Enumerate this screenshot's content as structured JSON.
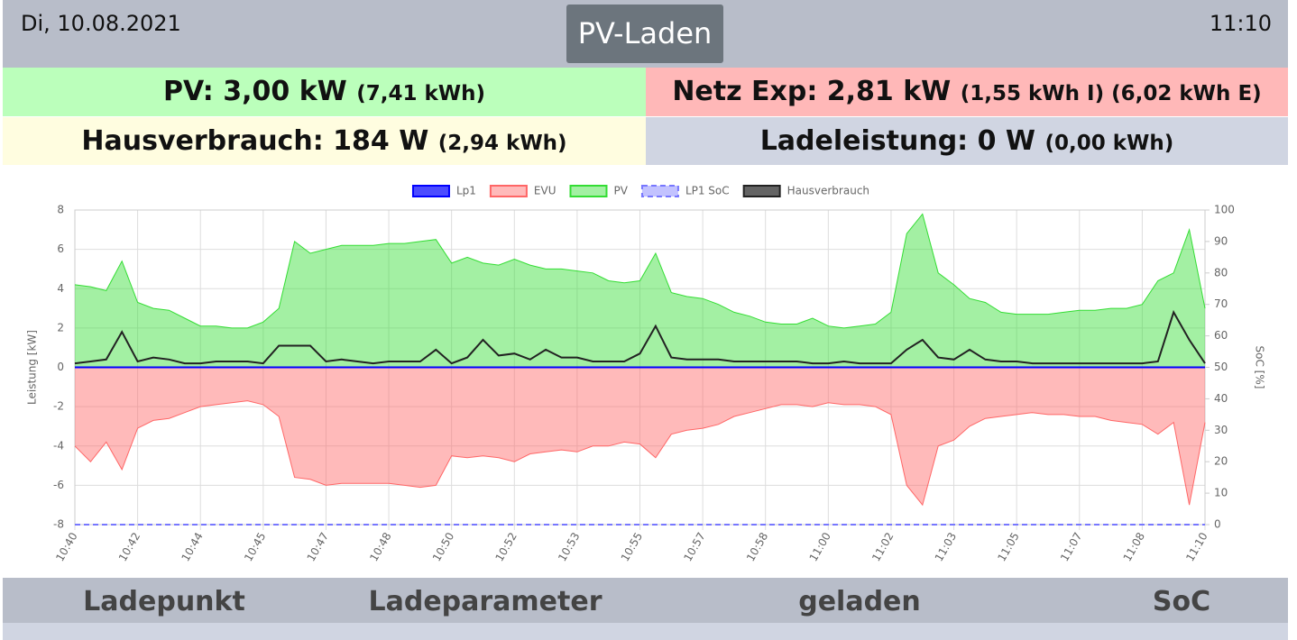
{
  "header": {
    "date": "Di, 10.08.2021",
    "title": "PV-Laden",
    "time": "11:10"
  },
  "tiles": [
    {
      "main": "PV: 3,00 kW",
      "detail": "(7,41 kWh)"
    },
    {
      "main": "Netz Exp: 2,81 kW",
      "detail": "(1,55 kWh I) (6,02 kWh E)"
    },
    {
      "main": "Hausverbrauch: 184 W",
      "detail": "(2,94 kWh)"
    },
    {
      "main": "Ladeleistung: 0 W",
      "detail": "(0,00 kWh)"
    }
  ],
  "chart_data": {
    "type": "line",
    "y_label": "Leistung [kW]",
    "y2_label": "SoC [%]",
    "legend": "top",
    "grid": true,
    "ylim": [
      -8,
      8
    ],
    "yticks": [
      -8,
      -6,
      -4,
      -2,
      0,
      2,
      4,
      6,
      8
    ],
    "y2lim": [
      0,
      100
    ],
    "y2ticks": [
      0,
      10,
      20,
      30,
      40,
      50,
      60,
      70,
      80,
      90,
      100
    ],
    "categories": [
      "10:40",
      null,
      null,
      null,
      "10:42",
      null,
      null,
      null,
      "10:44",
      null,
      null,
      null,
      "10:45",
      null,
      null,
      null,
      "10:47",
      null,
      null,
      null,
      "10:48",
      null,
      null,
      null,
      "10:50",
      null,
      null,
      null,
      "10:52",
      null,
      null,
      null,
      "10:53",
      null,
      null,
      null,
      "10:55",
      null,
      null,
      null,
      "10:57",
      null,
      null,
      null,
      "10:58",
      null,
      null,
      null,
      "11:00",
      null,
      null,
      null,
      "11:02",
      null,
      null,
      null,
      "11:03",
      null,
      null,
      null,
      "11:05",
      null,
      null,
      null,
      "11:07",
      null,
      null,
      null,
      "11:08",
      null,
      null,
      null,
      "11:10"
    ],
    "series": [
      {
        "name": "Lp1",
        "color": "#0000ff",
        "fill": false,
        "dash": false,
        "values": [
          0,
          0,
          0,
          0,
          0,
          0,
          0,
          0,
          0,
          0,
          0,
          0,
          0,
          0,
          0,
          0,
          0,
          0,
          0,
          0,
          0,
          0,
          0,
          0,
          0,
          0,
          0,
          0,
          0,
          0,
          0,
          0,
          0,
          0,
          0,
          0,
          0,
          0,
          0,
          0,
          0,
          0,
          0,
          0,
          0,
          0,
          0,
          0,
          0,
          0,
          0,
          0,
          0,
          0,
          0,
          0,
          0,
          0,
          0,
          0,
          0,
          0,
          0,
          0,
          0,
          0,
          0,
          0,
          0,
          0,
          0,
          0,
          0
        ]
      },
      {
        "name": "EVU",
        "color": "#ff6666",
        "fill": true,
        "dash": false,
        "values": [
          -4.0,
          -4.8,
          -3.8,
          -5.2,
          -3.1,
          -2.7,
          -2.6,
          -2.3,
          -2.0,
          -1.9,
          -1.8,
          -1.7,
          -1.9,
          -2.5,
          -5.6,
          -5.7,
          -6.0,
          -5.9,
          -5.9,
          -5.9,
          -5.9,
          -6.0,
          -6.1,
          -6.0,
          -4.5,
          -4.6,
          -4.5,
          -4.6,
          -4.8,
          -4.4,
          -4.3,
          -4.2,
          -4.3,
          -4.0,
          -4.0,
          -3.8,
          -3.9,
          -4.6,
          -3.4,
          -3.2,
          -3.1,
          -2.9,
          -2.5,
          -2.3,
          -2.1,
          -1.9,
          -1.9,
          -2.0,
          -1.8,
          -1.9,
          -1.9,
          -2.0,
          -2.4,
          -6.0,
          -7.0,
          -4.0,
          -3.7,
          -3.0,
          -2.6,
          -2.5,
          -2.4,
          -2.3,
          -2.4,
          -2.4,
          -2.5,
          -2.5,
          -2.7,
          -2.8,
          -2.9,
          -3.4,
          -2.8,
          -7.0,
          -2.8
        ]
      },
      {
        "name": "PV",
        "color": "#33dd33",
        "fill": true,
        "dash": false,
        "values": [
          4.2,
          4.1,
          3.9,
          5.4,
          3.3,
          3.0,
          2.9,
          2.5,
          2.1,
          2.1,
          2.0,
          2.0,
          2.3,
          3.0,
          6.4,
          5.8,
          6.0,
          6.2,
          6.2,
          6.2,
          6.3,
          6.3,
          6.4,
          6.5,
          5.3,
          5.6,
          5.3,
          5.2,
          5.5,
          5.2,
          5.0,
          5.0,
          4.9,
          4.8,
          4.4,
          4.3,
          4.4,
          5.8,
          3.8,
          3.6,
          3.5,
          3.2,
          2.8,
          2.6,
          2.3,
          2.2,
          2.2,
          2.5,
          2.1,
          2.0,
          2.1,
          2.2,
          2.8,
          6.8,
          7.8,
          4.8,
          4.2,
          3.5,
          3.3,
          2.8,
          2.7,
          2.7,
          2.7,
          2.8,
          2.9,
          2.9,
          3.0,
          3.0,
          3.2,
          4.4,
          4.8,
          7.0,
          3.0
        ]
      },
      {
        "name": "LP1 SoC",
        "color": "#7777ff",
        "fill": false,
        "dash": true,
        "axis": "y2",
        "values": [
          0,
          0,
          0,
          0,
          0,
          0,
          0,
          0,
          0,
          0,
          0,
          0,
          0,
          0,
          0,
          0,
          0,
          0,
          0,
          0,
          0,
          0,
          0,
          0,
          0,
          0,
          0,
          0,
          0,
          0,
          0,
          0,
          0,
          0,
          0,
          0,
          0,
          0,
          0,
          0,
          0,
          0,
          0,
          0,
          0,
          0,
          0,
          0,
          0,
          0,
          0,
          0,
          0,
          0,
          0,
          0,
          0,
          0,
          0,
          0,
          0,
          0,
          0,
          0,
          0,
          0,
          0,
          0,
          0,
          0,
          0,
          0,
          0
        ]
      },
      {
        "name": "Hausverbrauch",
        "color": "#222222",
        "fill": false,
        "dash": false,
        "values": [
          0.2,
          0.3,
          0.4,
          1.8,
          0.3,
          0.5,
          0.4,
          0.2,
          0.2,
          0.3,
          0.3,
          0.3,
          0.2,
          1.1,
          1.1,
          1.1,
          0.3,
          0.4,
          0.3,
          0.2,
          0.3,
          0.3,
          0.3,
          0.9,
          0.2,
          0.5,
          1.4,
          0.6,
          0.7,
          0.4,
          0.9,
          0.5,
          0.5,
          0.3,
          0.3,
          0.3,
          0.7,
          2.1,
          0.5,
          0.4,
          0.4,
          0.4,
          0.3,
          0.3,
          0.3,
          0.3,
          0.3,
          0.2,
          0.2,
          0.3,
          0.2,
          0.2,
          0.2,
          0.9,
          1.4,
          0.5,
          0.4,
          0.9,
          0.4,
          0.3,
          0.3,
          0.2,
          0.2,
          0.2,
          0.2,
          0.2,
          0.2,
          0.2,
          0.2,
          0.3,
          2.8,
          1.4,
          0.2
        ]
      }
    ]
  },
  "table": {
    "headers": [
      "Ladepunkt",
      "Ladeparameter",
      "geladen",
      "SoC"
    ]
  }
}
